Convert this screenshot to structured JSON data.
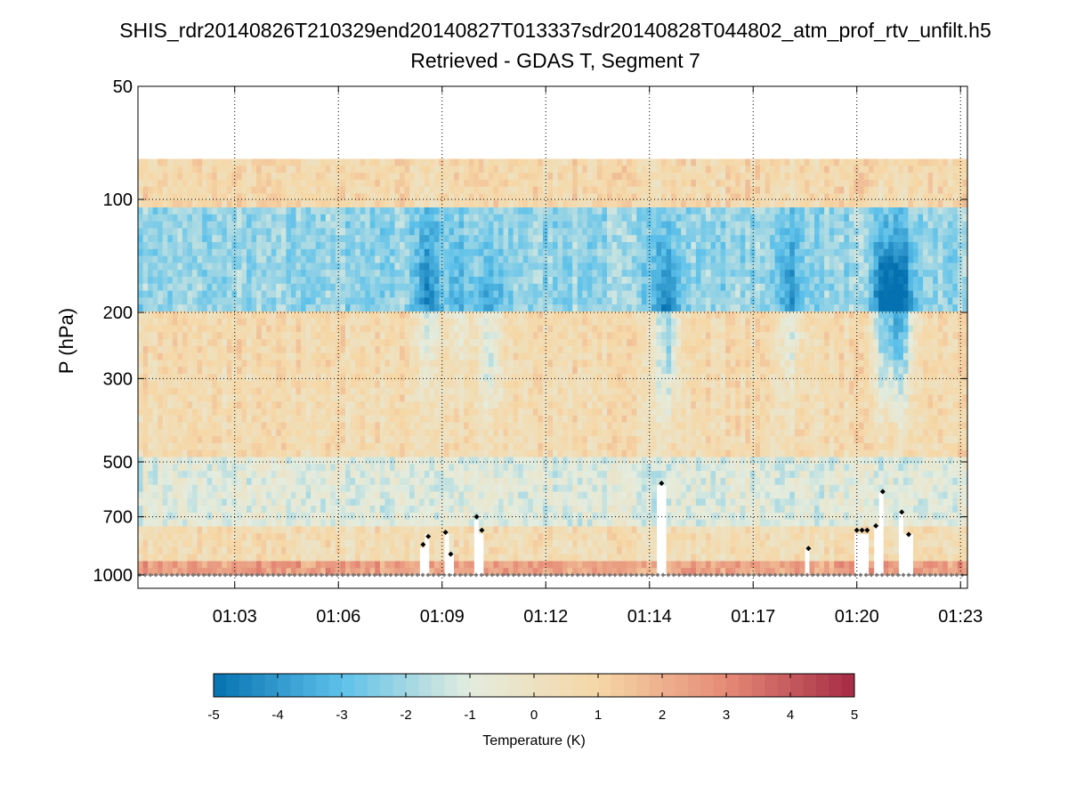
{
  "chart_data": {
    "type": "heatmap",
    "title": "SHIS_rdr20140826T210329end20140827T013337sdr20140828T044802_atm_prof_rtv_unfilt.h5",
    "subtitle": "Retrieved - GDAS T, Segment 7",
    "xlabel": "",
    "ylabel": "P (hPa)",
    "y_scale": "log",
    "y_direction": "reversed",
    "ylim": [
      50,
      1000
    ],
    "y_ticks": [
      50,
      100,
      200,
      300,
      500,
      700,
      1000
    ],
    "y_tick_labels": [
      "50",
      "100",
      "200",
      "300",
      "500",
      "700",
      "1000"
    ],
    "x_range_minutes": [
      0.2,
      24.2
    ],
    "x_ticks_minutes": [
      3,
      6,
      9,
      12,
      15,
      18,
      21,
      24
    ],
    "x_tick_labels": [
      "01:03",
      "01:06",
      "01:09",
      "01:12",
      "01:14",
      "01:17",
      "01:20",
      "01:23"
    ],
    "grid": true,
    "data_top_pressure": 78,
    "surface_pressure": 1000,
    "colorbar": {
      "label": "Temperature (K)",
      "range": [
        -5,
        5
      ],
      "ticks": [
        -5,
        -4,
        -3,
        -2,
        -1,
        0,
        1,
        2,
        3,
        4,
        5
      ],
      "tick_labels": [
        "-5",
        "-4",
        "-3",
        "-2",
        "-1",
        "0",
        "1",
        "2",
        "3",
        "4",
        "5"
      ],
      "palette": [
        "#0571b0",
        "#5dc1ea",
        "#e4ecde",
        "#f6d7a6",
        "#e58a76",
        "#a52a45"
      ]
    },
    "layer_description": [
      {
        "range_hPa": [
          78,
          105
        ],
        "value_K": 0.8,
        "note": "warm stratosphere band"
      },
      {
        "range_hPa": [
          105,
          200
        ],
        "value_K": -2.2,
        "note": "cold band near tropopause"
      },
      {
        "range_hPa": [
          200,
          290
        ],
        "value_K": 0.7
      },
      {
        "range_hPa": [
          290,
          480
        ],
        "value_K": 0.6
      },
      {
        "range_hPa": [
          480,
          750
        ],
        "value_K": -1.0
      },
      {
        "range_hPa": [
          750,
          900
        ],
        "value_K": 0.5
      },
      {
        "range_hPa": [
          900,
          1000
        ],
        "value_K": 2.4,
        "note": "warm near-surface layer"
      }
    ],
    "cold_plumes": [
      {
        "minute": 8.6,
        "center_hPa": 180,
        "value_K": -3.5
      },
      {
        "minute": 9.5,
        "center_hPa": 190,
        "value_K": -2.8
      },
      {
        "minute": 10.4,
        "center_hPa": 240,
        "value_K": -3.5
      },
      {
        "minute": 15.5,
        "center_hPa": 220,
        "value_K": -4.2
      },
      {
        "minute": 19.1,
        "center_hPa": 190,
        "value_K": -3.2
      },
      {
        "minute": 21.8,
        "center_hPa": 200,
        "value_K": -4.6
      },
      {
        "minute": 22.3,
        "center_hPa": 210,
        "value_K": -4.8
      }
    ],
    "cloud_top_markers": [
      {
        "minute": 8.45,
        "cloud_top_hPa": 830
      },
      {
        "minute": 8.6,
        "cloud_top_hPa": 790
      },
      {
        "minute": 9.1,
        "cloud_top_hPa": 770
      },
      {
        "minute": 9.25,
        "cloud_top_hPa": 880
      },
      {
        "minute": 10.0,
        "cloud_top_hPa": 700
      },
      {
        "minute": 10.15,
        "cloud_top_hPa": 760
      },
      {
        "minute": 15.35,
        "cloud_top_hPa": 570
      },
      {
        "minute": 19.6,
        "cloud_top_hPa": 850
      },
      {
        "minute": 21.0,
        "cloud_top_hPa": 760
      },
      {
        "minute": 21.15,
        "cloud_top_hPa": 760
      },
      {
        "minute": 21.3,
        "cloud_top_hPa": 760
      },
      {
        "minute": 21.55,
        "cloud_top_hPa": 740
      },
      {
        "minute": 21.75,
        "cloud_top_hPa": 600
      },
      {
        "minute": 22.3,
        "cloud_top_hPa": 680
      },
      {
        "minute": 22.5,
        "cloud_top_hPa": 780
      }
    ]
  }
}
